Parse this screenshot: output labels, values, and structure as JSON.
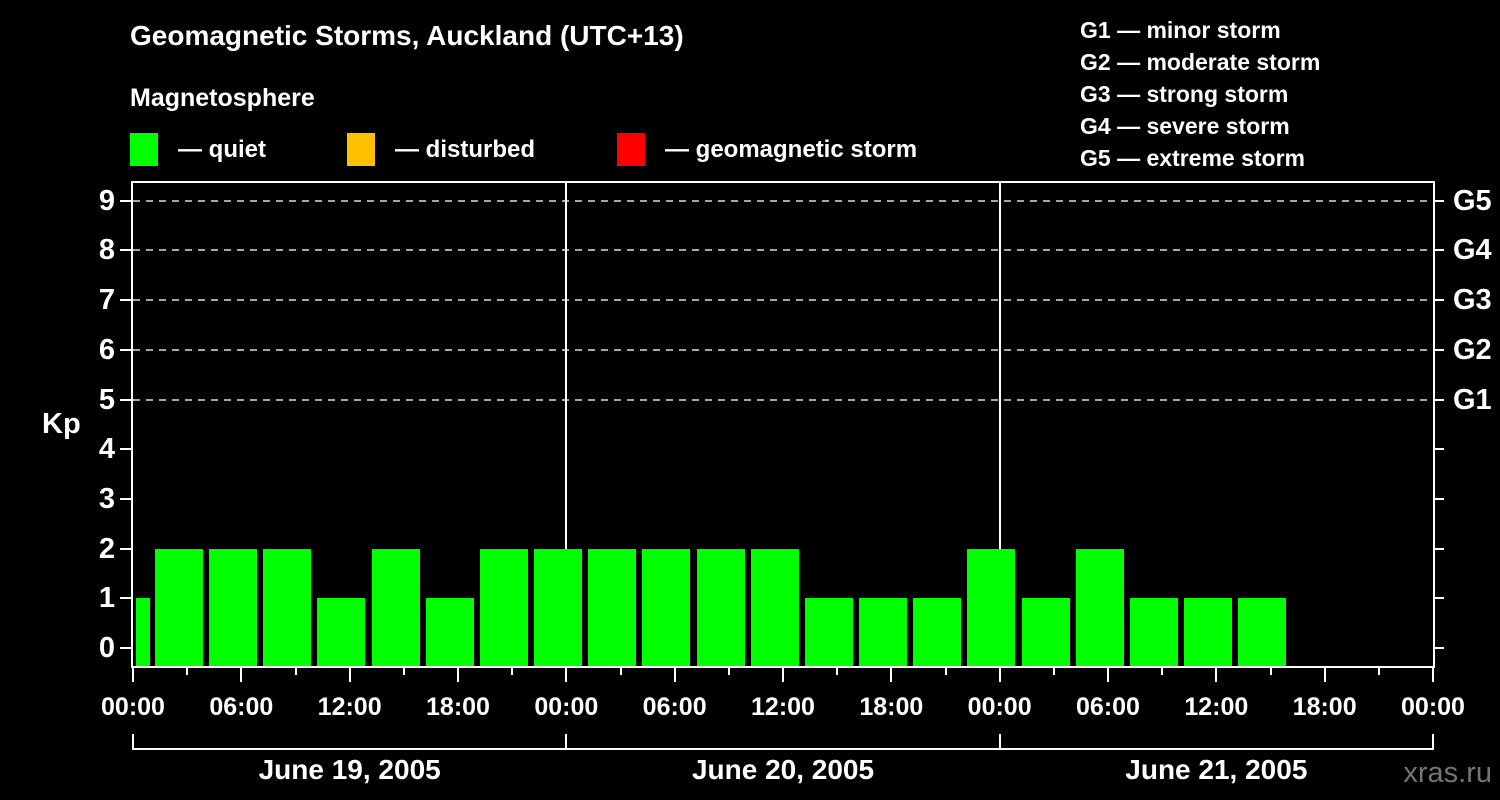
{
  "title": "Geomagnetic Storms, Auckland (UTC+13)",
  "subtitle": "Magnetosphere",
  "watermark": "xras.ru",
  "legend": {
    "items": [
      {
        "name": "quiet",
        "label": "— quiet",
        "color": "#00ff00"
      },
      {
        "name": "disturbed",
        "label": "— disturbed",
        "color": "#ffc000"
      },
      {
        "name": "geomagnetic-storm",
        "label": "— geomagnetic storm",
        "color": "#ff0000"
      }
    ]
  },
  "g_scale_legend": [
    "G1 — minor storm",
    "G2 — moderate storm",
    "G3 — strong storm",
    "G4 — severe storm",
    "G5 — extreme storm"
  ],
  "colors": {
    "background": "#000000",
    "axis": "#ffffff",
    "grid": "#a6a6a6",
    "bar_quiet": "#00ff00",
    "watermark_text": "#757575"
  },
  "chart_data": {
    "type": "bar",
    "title": "Geomagnetic Storms, Auckland (UTC+13)",
    "subtitle": "Magnetosphere",
    "ylabel": "Kp",
    "ylim": [
      0,
      9.4
    ],
    "y_ticks": [
      0,
      1,
      2,
      3,
      4,
      5,
      6,
      7,
      8,
      9
    ],
    "grid_dashed_at": [
      5,
      6,
      7,
      8,
      9
    ],
    "g_levels": [
      {
        "kp": 5,
        "label": "G1"
      },
      {
        "kp": 6,
        "label": "G2"
      },
      {
        "kp": 7,
        "label": "G3"
      },
      {
        "kp": 8,
        "label": "G4"
      },
      {
        "kp": 9,
        "label": "G5"
      }
    ],
    "x_tick_labels": [
      "00:00",
      "06:00",
      "12:00",
      "18:00",
      "00:00",
      "06:00",
      "12:00",
      "18:00",
      "00:00",
      "06:00",
      "12:00",
      "18:00",
      "00:00"
    ],
    "x_interval_hours": 3,
    "bar_color": "#00ff00",
    "first_bar_partial": true,
    "days": [
      {
        "label": "June 19, 2005",
        "kp": [
          1,
          2,
          2,
          2,
          1,
          2,
          1,
          2
        ]
      },
      {
        "label": "June 20, 2005",
        "kp": [
          2,
          2,
          2,
          2,
          2,
          1,
          1,
          1
        ]
      },
      {
        "label": "June 21, 2005",
        "kp": [
          2,
          1,
          2,
          1,
          1,
          1
        ]
      }
    ]
  }
}
